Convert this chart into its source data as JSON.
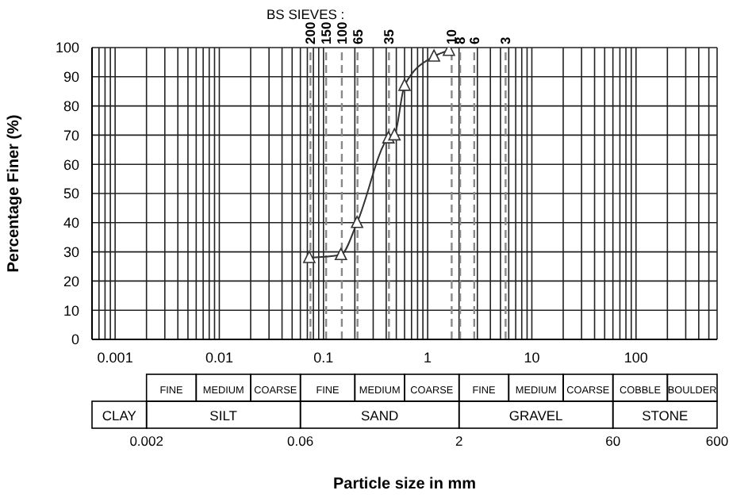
{
  "chart_data": [
    {
      "type": "line",
      "ylabel": "Percentage Finer  (%)",
      "log": "x",
      "grid": true,
      "marker": "triangle",
      "line_style": "solid",
      "x": [
        0.073,
        0.147,
        0.21,
        0.42,
        0.48,
        0.6,
        1.15,
        1.6
      ],
      "series": [
        {
          "color": "#333333",
          "values": [
            28,
            29,
            40,
            69,
            70,
            87,
            97,
            99
          ]
        }
      ],
      "xlim": [
        0.0006,
        600
      ],
      "xticks": [
        {
          "value": 0.0006,
          "label": null
        },
        {
          "value": 0.0007,
          "label": null
        },
        {
          "value": 0.0008,
          "label": null
        },
        {
          "value": 0.0009,
          "label": null
        },
        0.001,
        {
          "value": 0.002,
          "label": null
        },
        {
          "value": 0.003,
          "label": null
        },
        {
          "value": 0.004,
          "label": null
        },
        {
          "value": 0.005,
          "label": null
        },
        {
          "value": 0.006,
          "label": null
        },
        {
          "value": 0.007,
          "label": null
        },
        {
          "value": 0.008,
          "label": null
        },
        {
          "value": 0.009,
          "label": null
        },
        0.01,
        {
          "value": 0.02,
          "label": null
        },
        {
          "value": 0.03,
          "label": null
        },
        {
          "value": 0.04,
          "label": null
        },
        {
          "value": 0.05,
          "label": null
        },
        {
          "value": 0.06,
          "label": null
        },
        {
          "value": 0.07,
          "label": null
        },
        {
          "value": 0.08,
          "label": null
        },
        {
          "value": 0.09,
          "label": null
        },
        0.1,
        {
          "value": 0.2,
          "label": null
        },
        {
          "value": 0.3,
          "label": null
        },
        {
          "value": 0.4,
          "label": null
        },
        {
          "value": 0.5,
          "label": null
        },
        {
          "value": 0.6,
          "label": null
        },
        {
          "value": 0.7,
          "label": null
        },
        {
          "value": 0.8,
          "label": null
        },
        {
          "value": 0.9,
          "label": null
        },
        1,
        {
          "value": 2,
          "label": null
        },
        {
          "value": 3,
          "label": null
        },
        {
          "value": 4,
          "label": null
        },
        {
          "value": 5,
          "label": null
        },
        {
          "value": 6,
          "label": null
        },
        {
          "value": 7,
          "label": null
        },
        {
          "value": 8,
          "label": null
        },
        {
          "value": 9,
          "label": null
        },
        10,
        {
          "value": 20,
          "label": null
        },
        {
          "value": 30,
          "label": null
        },
        {
          "value": 40,
          "label": null
        },
        {
          "value": 50,
          "label": null
        },
        {
          "value": 60,
          "label": null
        },
        {
          "value": 70,
          "label": null
        },
        {
          "value": 80,
          "label": null
        },
        {
          "value": 90,
          "label": null
        },
        100,
        {
          "value": 200,
          "label": null
        },
        {
          "value": 300,
          "label": null
        },
        {
          "value": 400,
          "label": null
        },
        {
          "value": 500,
          "label": null
        },
        {
          "value": 600,
          "label": null
        }
      ],
      "ylim": [
        0,
        100
      ],
      "yticks": [
        0,
        10,
        20,
        30,
        40,
        50,
        60,
        70,
        80,
        90,
        100
      ],
      "ref_lines": [
        {
          "axis": "x",
          "value": 0.075,
          "line_style": "dashed",
          "color": "#888888"
        },
        {
          "axis": "x",
          "value": 0.106,
          "line_style": "dashed",
          "color": "#888888"
        },
        {
          "axis": "x",
          "value": 0.15,
          "line_style": "dashed",
          "color": "#888888"
        },
        {
          "axis": "x",
          "value": 0.212,
          "line_style": "dashed",
          "color": "#888888"
        },
        {
          "axis": "x",
          "value": 0.425,
          "line_style": "dashed",
          "color": "#888888"
        },
        {
          "axis": "x",
          "value": 1.7,
          "line_style": "dashed",
          "color": "#888888"
        },
        {
          "axis": "x",
          "value": 2.05,
          "line_style": "dashed",
          "color": "#888888"
        },
        {
          "axis": "x",
          "value": 2.8,
          "line_style": "dashed",
          "color": "#888888"
        },
        {
          "axis": "x",
          "value": 5.6,
          "line_style": "dashed",
          "color": "#888888"
        }
      ],
      "annotations": [
        "BS SIEVES :",
        "200",
        "150",
        "100",
        "65",
        "35",
        "10",
        "8",
        "6",
        "3"
      ]
    },
    {
      "type": "other",
      "annotations": [
        "FINE",
        "MEDIUM",
        "COARSE",
        "FINE",
        "MEDIUM",
        "COARSE",
        "FINE",
        "MEDIUM",
        "COARSE",
        "COBBLE",
        "BOULDER",
        "CLAY",
        "SILT",
        "SAND",
        "GRAVEL",
        "STONE",
        "0.002",
        "0.06",
        "2",
        "60",
        "600",
        "Particle   size   in   mm"
      ]
    }
  ]
}
